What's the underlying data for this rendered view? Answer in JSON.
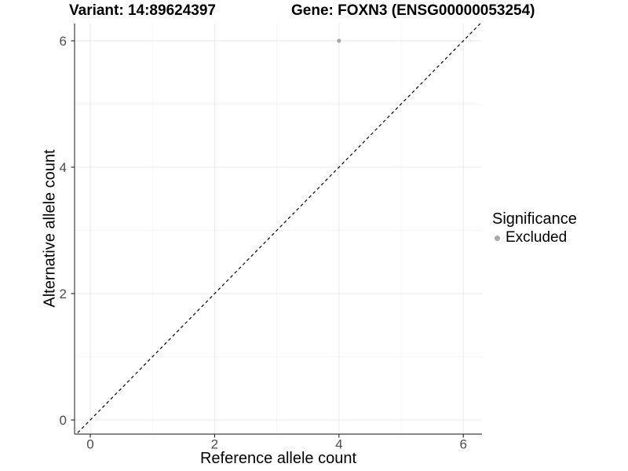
{
  "chart_data": {
    "type": "scatter",
    "title_left": "Variant: 14:89624397",
    "title_right": "Gene: FOXN3 (ENSG00000053254)",
    "xlabel": "Reference allele count",
    "ylabel": "Alternative allele count",
    "xlim": [
      -0.25,
      6.3
    ],
    "ylim": [
      -0.25,
      6.3
    ],
    "x_ticks": [
      0,
      2,
      4,
      6
    ],
    "y_ticks": [
      0,
      2,
      4,
      6
    ],
    "x_minor_ticks": [
      1,
      3,
      5
    ],
    "y_minor_ticks": [
      1,
      3,
      5
    ],
    "grid": true,
    "reference_line": {
      "type": "identity",
      "style": "dashed"
    },
    "series": [
      {
        "name": "Excluded",
        "points": [
          {
            "x": 4,
            "y": 6
          }
        ]
      }
    ],
    "legend": {
      "position": "right",
      "title": "Significance",
      "entries": [
        {
          "label": "Excluded",
          "color": "#a8a8a8"
        }
      ]
    }
  },
  "colors": {
    "background": "#ffffff",
    "point": "#a8a8a8",
    "grid_major": "#e9e9e9",
    "grid_minor": "#f4f4f4",
    "axis_line": "#404040",
    "tick_mark": "#333333",
    "tick_label": "#4d4d4d",
    "reference_line": "#000000"
  }
}
